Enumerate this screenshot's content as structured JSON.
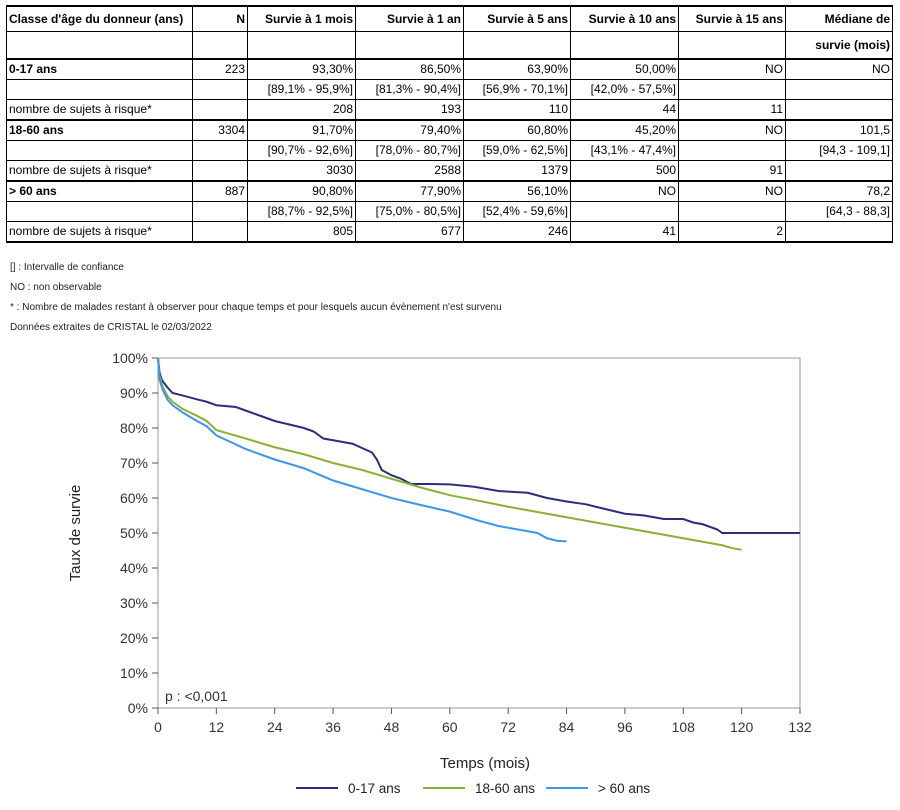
{
  "table": {
    "headers": [
      "Classe d'âge du donneur (ans)",
      "N",
      "Survie à 1 mois",
      "Survie à 1 an",
      "Survie à 5 ans",
      "Survie à 10 ans",
      "Survie à 15 ans",
      "Médiane de",
      "survie (mois)"
    ],
    "groups": [
      {
        "label": "0-17 ans",
        "n": "223",
        "values": [
          "93,30%",
          "86,50%",
          "63,90%",
          "50,00%",
          "NO",
          "NO"
        ],
        "ci": [
          "[89,1% - 95,9%]",
          "[81,3% - 90,4%]",
          "[56,9% - 70,1%]",
          "[42,0% - 57,5%]",
          "",
          ""
        ],
        "risk_label": "nombre de sujets à risque*",
        "risk": [
          "208",
          "193",
          "110",
          "44",
          "11",
          ""
        ]
      },
      {
        "label": "18-60 ans",
        "n": "3304",
        "values": [
          "91,70%",
          "79,40%",
          "60,80%",
          "45,20%",
          "NO",
          "101,5"
        ],
        "ci": [
          "[90,7% - 92,6%]",
          "[78,0% - 80,7%]",
          "[59,0% - 62,5%]",
          "[43,1% - 47,4%]",
          "",
          "[94,3 - 109,1]"
        ],
        "risk_label": "nombre de sujets à risque*",
        "risk": [
          "3030",
          "2588",
          "1379",
          "500",
          "91",
          ""
        ]
      },
      {
        "label": "> 60 ans",
        "n": "887",
        "values": [
          "90,80%",
          "77,90%",
          "56,10%",
          "NO",
          "NO",
          "78,2"
        ],
        "ci": [
          "[88,7% - 92,5%]",
          "[75,0% - 80,5%]",
          "[52,4% - 59,6%]",
          "",
          "",
          "[64,3 - 88,3]"
        ],
        "risk_label": "nombre de sujets à risque*",
        "risk": [
          "805",
          "677",
          "246",
          "41",
          "2",
          ""
        ]
      }
    ]
  },
  "notes": [
    "[] : Intervalle de confiance",
    "NO : non observable",
    "* : Nombre de malades restant à observer pour chaque temps et pour lesquels aucun évènement n'est survenu",
    "Données extraites de CRISTAL le 02/03/2022"
  ],
  "chart_data": {
    "type": "line",
    "xlabel": "Temps (mois)",
    "ylabel": "Taux de survie",
    "xlim": [
      0,
      132
    ],
    "ylim": [
      0,
      100
    ],
    "xticks": [
      0,
      12,
      24,
      36,
      48,
      60,
      72,
      84,
      96,
      108,
      120,
      132
    ],
    "yticks": [
      0,
      10,
      20,
      30,
      40,
      50,
      60,
      70,
      80,
      90,
      100
    ],
    "ytick_labels": [
      "0%",
      "10%",
      "20%",
      "30%",
      "40%",
      "50%",
      "60%",
      "70%",
      "80%",
      "90%",
      "100%"
    ],
    "annotation": "p : <0,001",
    "legend_position": "bottom",
    "series": [
      {
        "name": "0-17 ans",
        "color": "#2b2f7a",
        "points": [
          [
            0,
            100
          ],
          [
            0.3,
            96
          ],
          [
            0.7,
            94
          ],
          [
            1,
            93.3
          ],
          [
            2,
            91.5
          ],
          [
            3,
            90
          ],
          [
            5,
            89.3
          ],
          [
            8,
            88.2
          ],
          [
            10,
            87.5
          ],
          [
            12,
            86.5
          ],
          [
            16,
            86
          ],
          [
            18,
            85
          ],
          [
            21,
            83.5
          ],
          [
            24,
            82
          ],
          [
            27,
            81
          ],
          [
            30,
            80
          ],
          [
            32,
            79
          ],
          [
            34,
            77
          ],
          [
            36,
            76.5
          ],
          [
            40,
            75.5
          ],
          [
            44,
            73
          ],
          [
            45,
            71
          ],
          [
            46,
            68
          ],
          [
            48,
            66.5
          ],
          [
            50,
            65.5
          ],
          [
            52,
            64
          ],
          [
            56,
            64
          ],
          [
            60,
            63.9
          ],
          [
            65,
            63.2
          ],
          [
            70,
            62
          ],
          [
            76,
            61.5
          ],
          [
            80,
            60
          ],
          [
            84,
            59
          ],
          [
            88,
            58.2
          ],
          [
            90,
            57.5
          ],
          [
            93,
            56.5
          ],
          [
            96,
            55.5
          ],
          [
            100,
            55
          ],
          [
            104,
            54
          ],
          [
            108,
            54
          ],
          [
            110,
            53
          ],
          [
            112,
            52.5
          ],
          [
            115,
            51
          ],
          [
            116,
            50
          ],
          [
            120,
            50
          ],
          [
            132,
            50
          ]
        ]
      },
      {
        "name": "18-60 ans",
        "color": "#8ab034",
        "points": [
          [
            0,
            100
          ],
          [
            0.3,
            95
          ],
          [
            0.7,
            93
          ],
          [
            1,
            91.7
          ],
          [
            2,
            89
          ],
          [
            3,
            87.5
          ],
          [
            5,
            85.5
          ],
          [
            8,
            83.5
          ],
          [
            10,
            82
          ],
          [
            12,
            79.4
          ],
          [
            18,
            77
          ],
          [
            24,
            74.5
          ],
          [
            30,
            72.5
          ],
          [
            36,
            70
          ],
          [
            42,
            68
          ],
          [
            48,
            65.5
          ],
          [
            54,
            63
          ],
          [
            60,
            60.8
          ],
          [
            66,
            59.2
          ],
          [
            72,
            57.5
          ],
          [
            78,
            56
          ],
          [
            84,
            54.5
          ],
          [
            90,
            53
          ],
          [
            96,
            51.5
          ],
          [
            100,
            50.5
          ],
          [
            104,
            49.5
          ],
          [
            108,
            48.5
          ],
          [
            112,
            47.5
          ],
          [
            116,
            46.5
          ],
          [
            118,
            45.7
          ],
          [
            120,
            45.2
          ]
        ]
      },
      {
        "name": "> 60 ans",
        "color": "#3d96e6",
        "points": [
          [
            0,
            100
          ],
          [
            0.3,
            94
          ],
          [
            0.7,
            92
          ],
          [
            1,
            90.8
          ],
          [
            2,
            88
          ],
          [
            3,
            86.5
          ],
          [
            5,
            84.5
          ],
          [
            8,
            82
          ],
          [
            10,
            80.5
          ],
          [
            12,
            77.9
          ],
          [
            18,
            74
          ],
          [
            24,
            71
          ],
          [
            30,
            68.5
          ],
          [
            36,
            65
          ],
          [
            42,
            62.5
          ],
          [
            48,
            60
          ],
          [
            54,
            58
          ],
          [
            60,
            56.1
          ],
          [
            66,
            53.5
          ],
          [
            70,
            52
          ],
          [
            74,
            51
          ],
          [
            78,
            50
          ],
          [
            80,
            48.5
          ],
          [
            82,
            47.8
          ],
          [
            84,
            47.6
          ]
        ]
      }
    ]
  }
}
